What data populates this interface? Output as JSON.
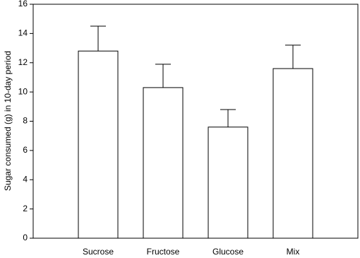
{
  "chart_data": {
    "type": "bar",
    "y_label": "Sugar consumed (g) in 10-day period",
    "categories": [
      "Sucrose",
      "Fructose",
      "Glucose",
      "Mix"
    ],
    "values": [
      12.8,
      10.3,
      7.6,
      11.6
    ],
    "errors": [
      1.7,
      1.6,
      1.2,
      1.6
    ],
    "color": "#ffffff",
    "ylim": [
      0,
      16
    ],
    "yticks": [
      0,
      2,
      4,
      6,
      8,
      10,
      12,
      14,
      16
    ],
    "grid": false
  }
}
